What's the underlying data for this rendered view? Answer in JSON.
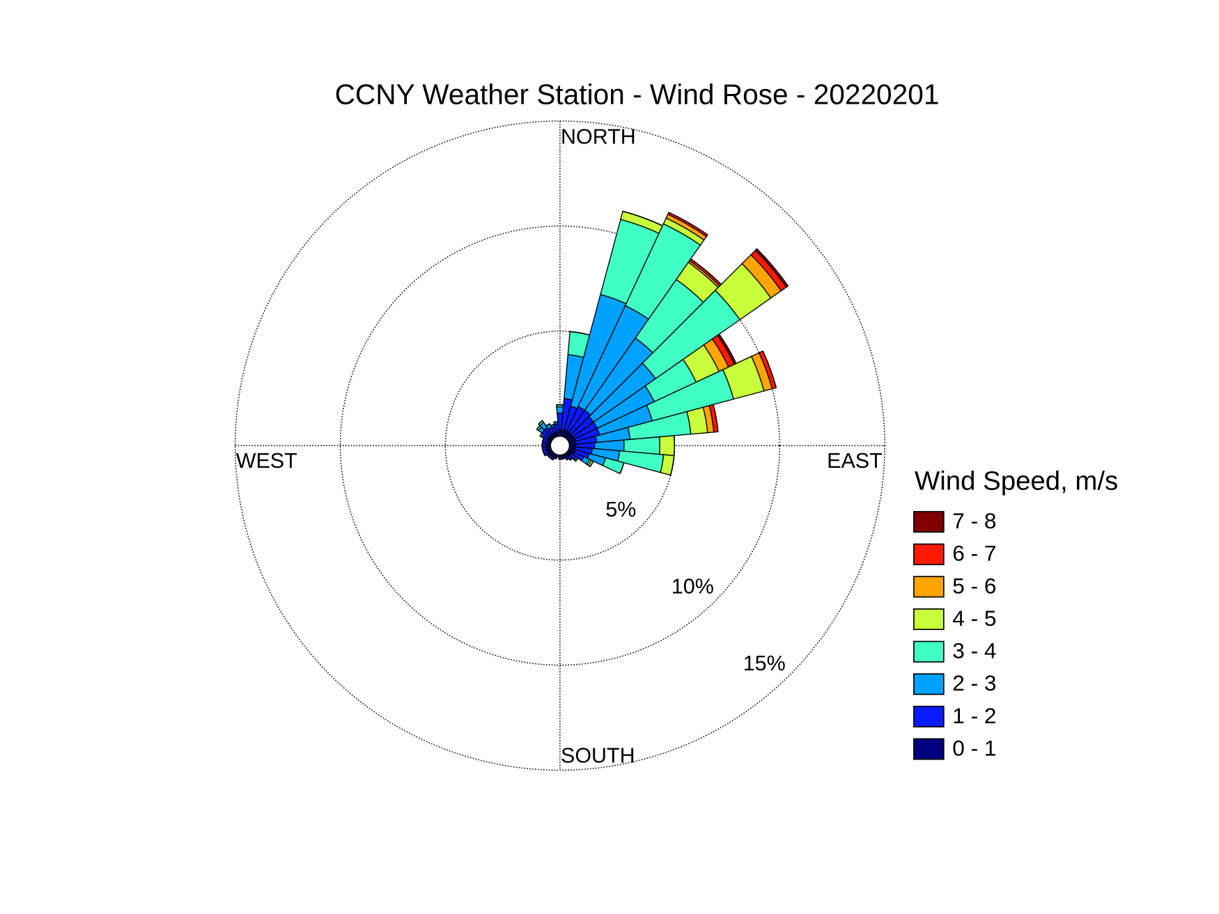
{
  "chart_data": {
    "type": "wind_rose",
    "title": "CCNY Weather Station - Wind Rose - 20220201",
    "compass_labels": {
      "north": "NORTH",
      "east": "EAST",
      "south": "SOUTH",
      "west": "WEST"
    },
    "legend_title": "Wind Speed, m/s",
    "directions": [
      0,
      10,
      20,
      30,
      40,
      50,
      60,
      70,
      80,
      90,
      100,
      110,
      120,
      130,
      140,
      150,
      160,
      170,
      180,
      190,
      200,
      210,
      220,
      230,
      240,
      250,
      260,
      270,
      280,
      290,
      300,
      310,
      320,
      330,
      340,
      350
    ],
    "rlim": [
      0,
      15
    ],
    "rticks": [
      {
        "value": 5,
        "label": "5%"
      },
      {
        "value": 10,
        "label": "10%"
      },
      {
        "value": 15,
        "label": "15%"
      }
    ],
    "series": [
      {
        "name": "0 - 1",
        "color": "#000080",
        "values": [
          0.3,
          0.3,
          0.3,
          0.3,
          0.3,
          0.3,
          0.3,
          0.3,
          0.3,
          0.3,
          0.3,
          0.3,
          0.3,
          0.2,
          0.2,
          0.2,
          0.1,
          0.1,
          0.1,
          0.1,
          0.1,
          0.2,
          0.2,
          0.2,
          0.2,
          0.2,
          0.2,
          0.2,
          0.2,
          0.2,
          0.2,
          0.2,
          0.2,
          0.2,
          0.2,
          0.2
        ]
      },
      {
        "name": "1 - 2",
        "color": "#0a1cff",
        "values": [
          0.8,
          1.5,
          1.2,
          1.3,
          1.3,
          1.2,
          1.2,
          1.2,
          1.0,
          0.9,
          0.8,
          0.7,
          0.5,
          0.3,
          0.2,
          0.1,
          0.1,
          0.1,
          0.1,
          0,
          0.1,
          0.1,
          0.1,
          0.1,
          0.2,
          0.2,
          0.2,
          0.2,
          0.2,
          0.2,
          0.3,
          0.4,
          0.4,
          0.3,
          0.3,
          0.4
        ]
      },
      {
        "name": "2 - 3",
        "color": "#00a2ff",
        "values": [
          0.3,
          2.1,
          5.5,
          5.3,
          4.2,
          3.6,
          3.0,
          2.6,
          1.6,
          1.4,
          1.3,
          0.8,
          0.3,
          0.1,
          0,
          0,
          0,
          0,
          0,
          0,
          0,
          0,
          0,
          0,
          0,
          0,
          0,
          0,
          0,
          0,
          0.1,
          0.2,
          0.3,
          0.2,
          0.1,
          0.1
        ]
      },
      {
        "name": "3 - 4",
        "color": "#40ffc4",
        "values": [
          0.1,
          1.1,
          3.7,
          4.3,
          3.4,
          4.9,
          2.2,
          4.0,
          2.9,
          1.7,
          2.1,
          0.9,
          0.1,
          0,
          0,
          0,
          0,
          0,
          0,
          0,
          0,
          0,
          0,
          0,
          0,
          0,
          0,
          0,
          0,
          0,
          0,
          0.1,
          0.1,
          0,
          0,
          0
        ]
      },
      {
        "name": "4 - 5",
        "color": "#c8ff3a",
        "values": [
          0,
          0,
          0.4,
          0.3,
          1.0,
          1.8,
          1.2,
          1.5,
          0.8,
          0.7,
          0.5,
          0,
          0.1,
          0,
          0,
          0,
          0,
          0,
          0,
          0,
          0,
          0,
          0,
          0,
          0,
          0,
          0,
          0,
          0,
          0,
          0,
          0,
          0,
          0,
          0,
          0
        ]
      },
      {
        "name": "5 - 6",
        "color": "#ffa500",
        "values": [
          0,
          0,
          0,
          0.2,
          0.1,
          0.6,
          0.5,
          0.4,
          0.3,
          0,
          0,
          0,
          0,
          0,
          0,
          0,
          0,
          0,
          0,
          0,
          0,
          0,
          0,
          0,
          0,
          0,
          0,
          0,
          0,
          0,
          0,
          0,
          0,
          0,
          0,
          0
        ]
      },
      {
        "name": "6 - 7",
        "color": "#ff1a00",
        "values": [
          0,
          0,
          0,
          0.1,
          0.1,
          0.3,
          0.3,
          0.2,
          0.2,
          0,
          0,
          0,
          0,
          0,
          0,
          0,
          0,
          0,
          0,
          0,
          0,
          0,
          0,
          0,
          0,
          0,
          0,
          0,
          0,
          0,
          0,
          0,
          0,
          0,
          0,
          0
        ]
      },
      {
        "name": "7 - 8",
        "color": "#800000",
        "values": [
          0,
          0,
          0,
          0,
          0,
          0.1,
          0.1,
          0,
          0,
          0,
          0,
          0,
          0,
          0,
          0,
          0,
          0,
          0,
          0,
          0,
          0,
          0,
          0,
          0,
          0,
          0,
          0,
          0,
          0,
          0,
          0,
          0,
          0,
          0,
          0,
          0
        ]
      }
    ]
  }
}
